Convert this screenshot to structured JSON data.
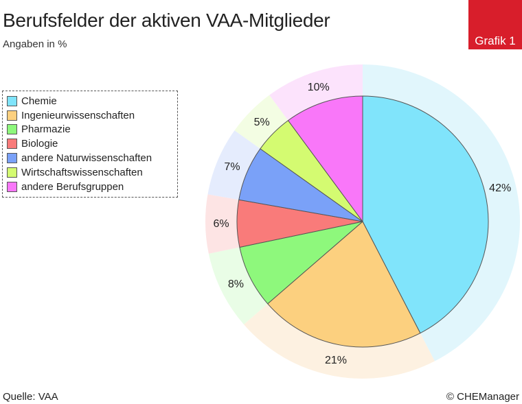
{
  "header": {
    "badge": "Grafik 1"
  },
  "footer": {
    "source": "Quelle: VAA",
    "copyright": "© CHEManager"
  },
  "chart_data": {
    "type": "pie",
    "title": "Berufsfelder der aktiven VAA-Mitglieder",
    "subtitle": "Angaben in %",
    "categories": [
      "Chemie",
      "Ingenieurwissenschaften",
      "Pharmazie",
      "Biologie",
      "andere Naturwissenschaften",
      "Wirtschaftswissenschaften",
      "andere Berufsgruppen"
    ],
    "values": [
      42,
      21,
      8,
      6,
      7,
      5,
      10
    ],
    "labels": [
      "42%",
      "21%",
      "8%",
      "6%",
      "7%",
      "5%",
      "10%"
    ],
    "colors": [
      "#80e4fb",
      "#fcd07f",
      "#8ef87c",
      "#f97b7a",
      "#7aa1f8",
      "#d4fb71",
      "#f977f9"
    ],
    "ring_colors": [
      "#e1f6fc",
      "#fdf1e1",
      "#e9fde6",
      "#fde4e4",
      "#e5ecfd",
      "#f3fde3",
      "#fce3fc"
    ],
    "legend_position": "left"
  }
}
